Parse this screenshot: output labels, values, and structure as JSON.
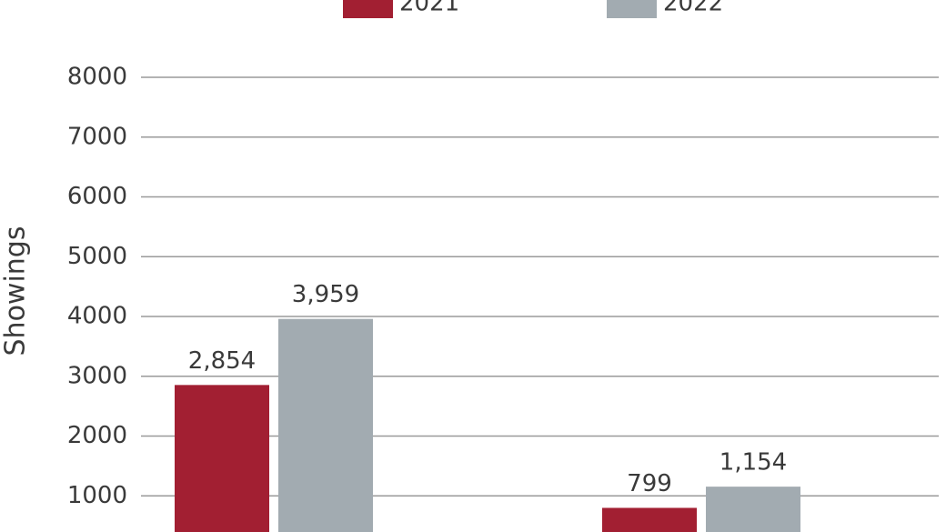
{
  "chart_data": {
    "type": "bar",
    "y_label": "Showings",
    "categories": [
      null,
      null
    ],
    "series": [
      {
        "name": "2021",
        "color": "#a21f32",
        "values": [
          2854,
          799
        ],
        "value_labels": [
          "2,854",
          "799"
        ]
      },
      {
        "name": "2022",
        "color": "#a2abb1",
        "values": [
          3959,
          1154
        ],
        "value_labels": [
          "3,959",
          "1,154"
        ]
      }
    ],
    "ylim": [
      0,
      8000
    ],
    "yticks": [
      1000,
      2000,
      3000,
      4000,
      5000,
      6000,
      7000,
      8000
    ],
    "grid": true
  }
}
